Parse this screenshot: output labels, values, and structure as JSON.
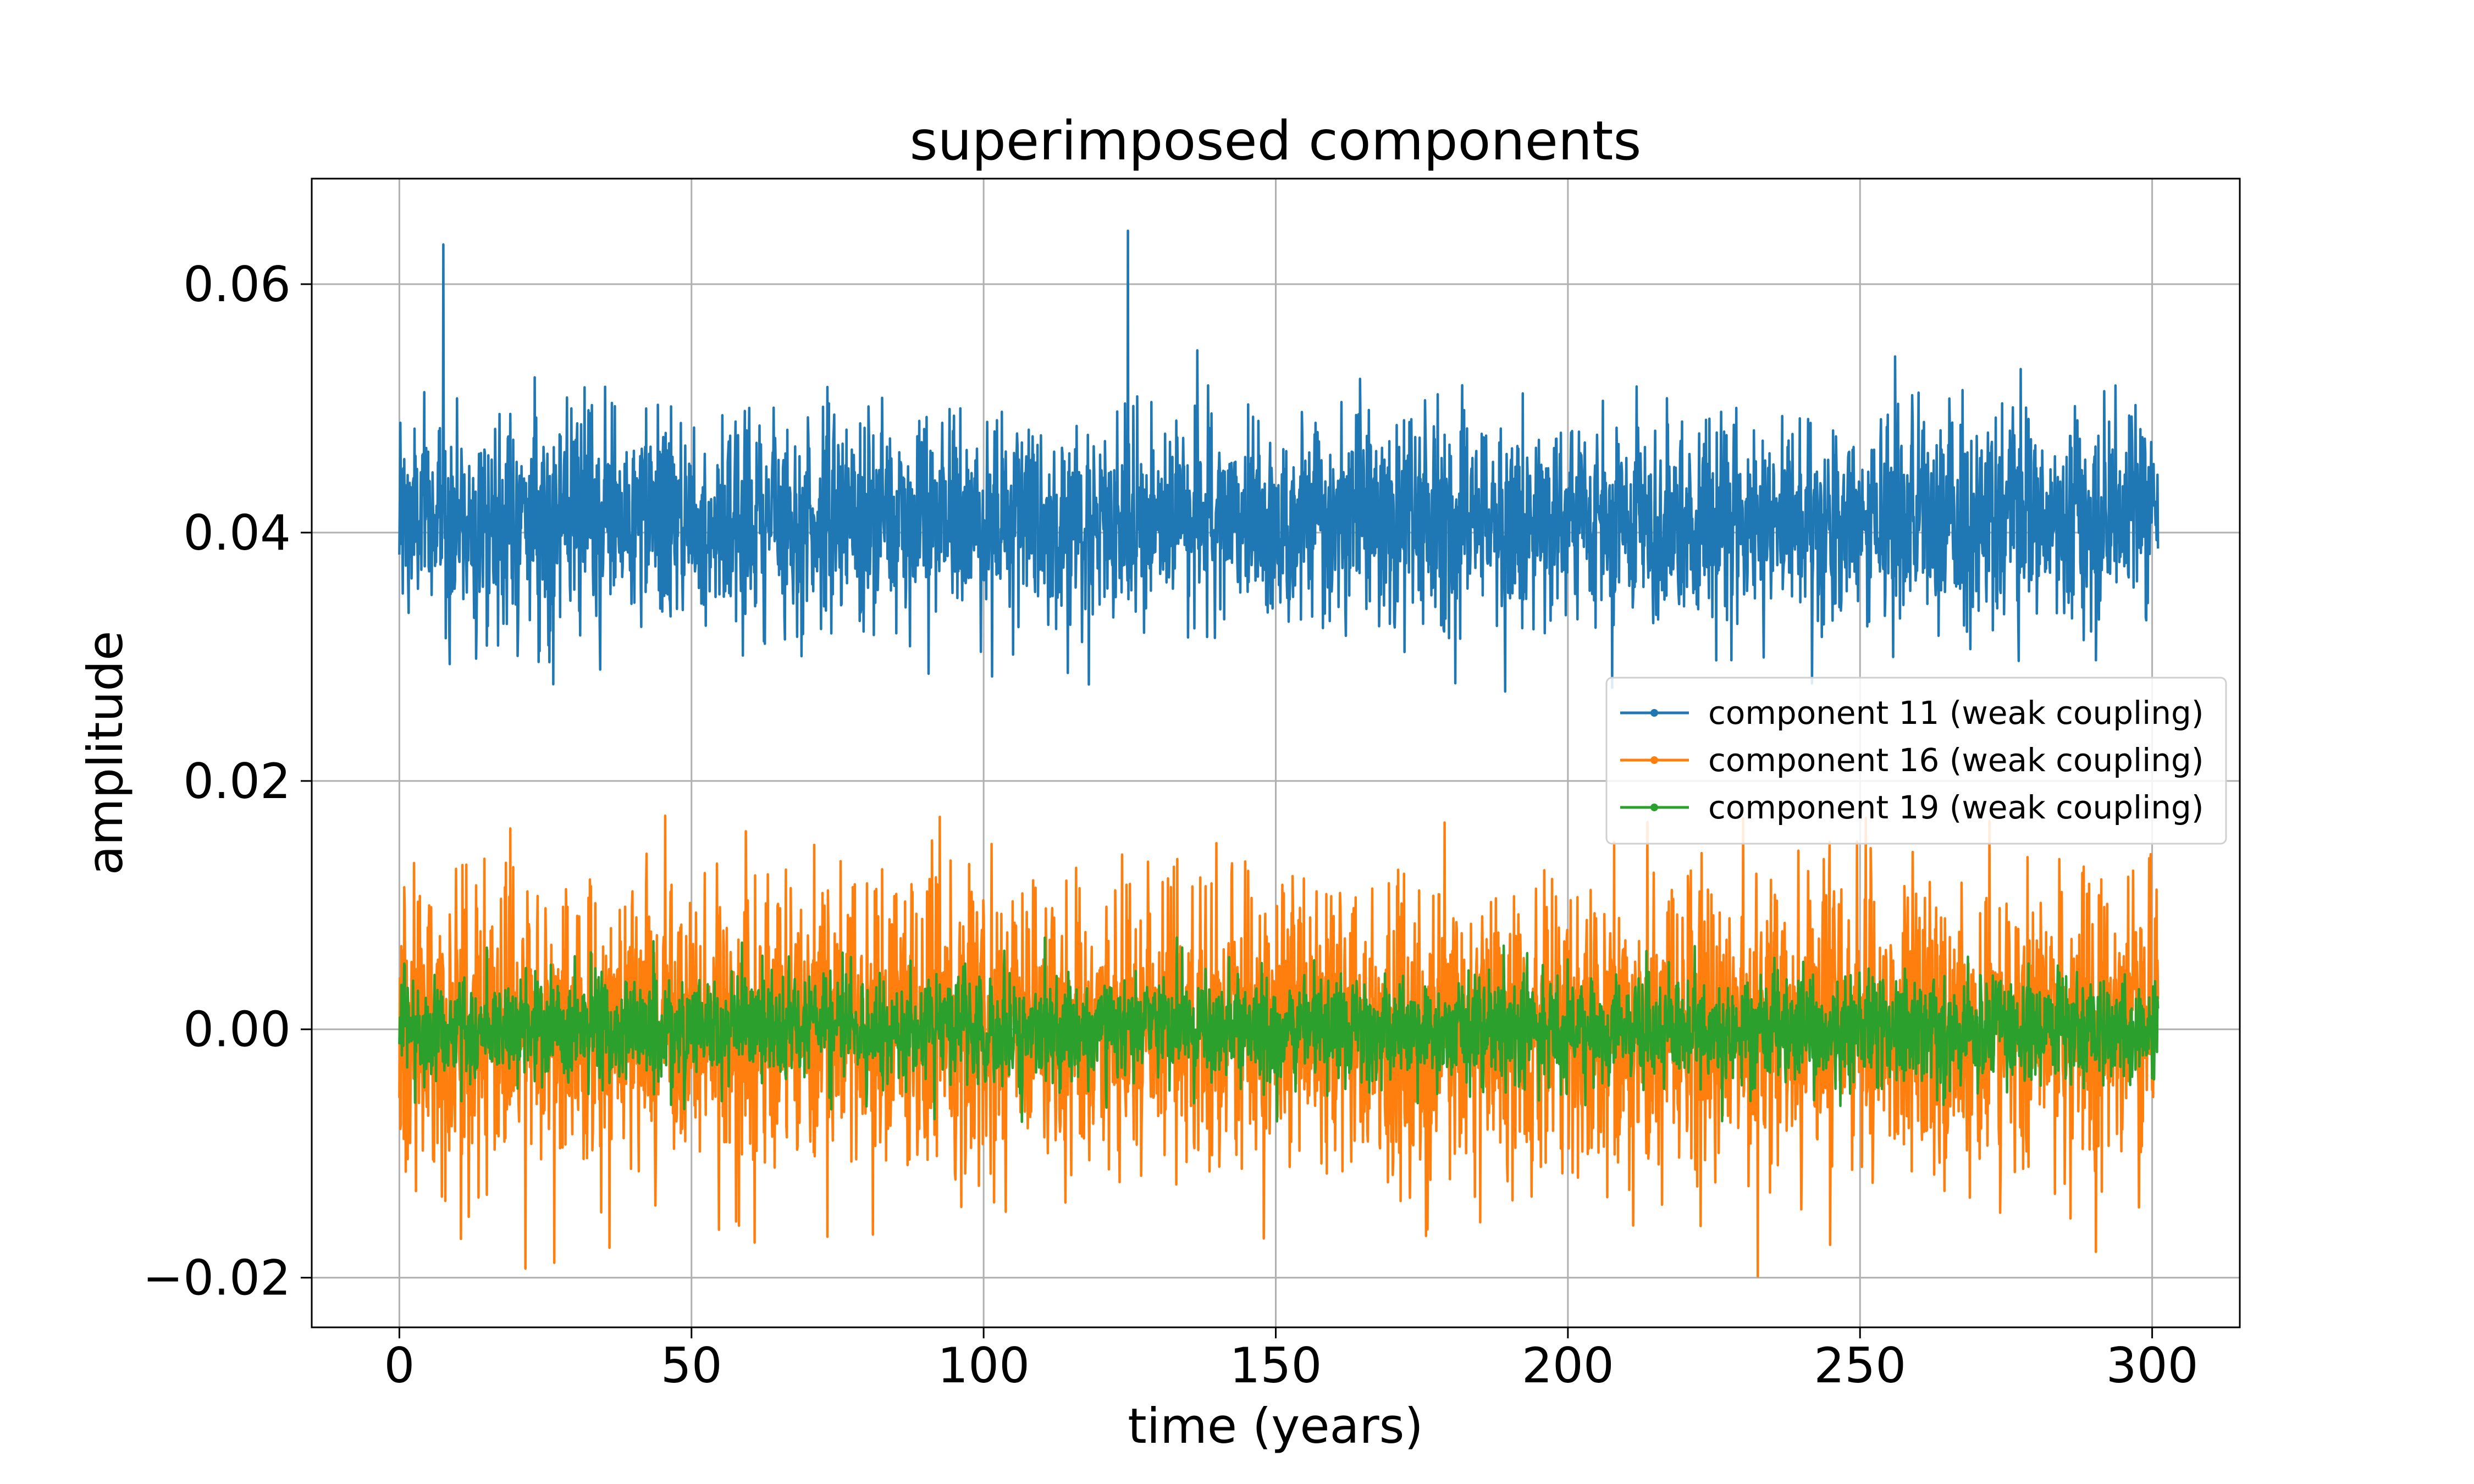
{
  "chart_data": {
    "type": "line",
    "title": "superimposed components",
    "xlabel": "time (years)",
    "ylabel": "amplitude",
    "xlim": [
      -15,
      315
    ],
    "ylim": [
      -0.024,
      0.0685
    ],
    "xticks": [
      0,
      50,
      100,
      150,
      200,
      250,
      300
    ],
    "xtick_labels": [
      "0",
      "50",
      "100",
      "150",
      "200",
      "250",
      "300"
    ],
    "yticks": [
      -0.02,
      0.0,
      0.02,
      0.04,
      0.06
    ],
    "ytick_labels": [
      "−0.02",
      "0.00",
      "0.02",
      "0.04",
      "0.06"
    ],
    "grid": true,
    "legend_position": "right",
    "x_range": [
      0,
      301
    ],
    "num_points": 3600,
    "series": [
      {
        "name": "component 11 (weak coupling)",
        "color": "#1f77b4",
        "mean": 0.041,
        "spread": 0.0042,
        "min": 0.0272,
        "max": 0.0643,
        "notable_points": [
          [
            7.5,
            0.0632
          ],
          [
            124.7,
            0.0643
          ],
          [
            189.3,
            0.0272
          ]
        ]
      },
      {
        "name": "component 16 (weak coupling)",
        "color": "#ff7f0e",
        "mean": 0.0,
        "spread": 0.0058,
        "min": -0.0199,
        "max": 0.0172,
        "notable_points": [
          [
            45.5,
            0.0172
          ],
          [
            26.5,
            -0.0188
          ],
          [
            232.5,
            -0.0199
          ]
        ]
      },
      {
        "name": "component 19 (weak coupling)",
        "color": "#2ca02c",
        "mean": 0.0,
        "spread": 0.0022,
        "min": -0.0079,
        "max": 0.0078,
        "notable_points": []
      }
    ]
  }
}
